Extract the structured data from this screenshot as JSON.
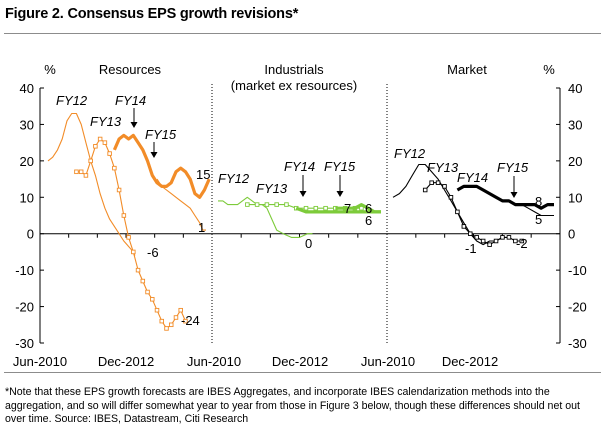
{
  "figure": {
    "title": "Figure 2. Consensus EPS growth revisions*",
    "footnote": "*Note that these EPS growth forecasts are IBES Aggregates, and incorporate IBES calendarization methods into the aggregation, and so will differ somewhat year to year from those in Figure 3 below, though these differences should net out over time. Source: IBES, Datastream, Citi Research"
  },
  "chart_data": {
    "type": "line",
    "y_unit_label": "%",
    "ylim": [
      -30,
      40
    ],
    "yticks": [
      -30,
      -20,
      -10,
      0,
      10,
      20,
      30,
      40
    ],
    "x_axis_ticks": [
      "Jun-2010",
      "Dec-2012",
      "Jun-2010",
      "Dec-2012",
      "Jun-2010",
      "Dec-2012"
    ],
    "colors": {
      "resources": "#F28C28",
      "industrials": "#7DCB3A",
      "market": "#000000"
    },
    "panels": [
      {
        "id": "resources",
        "title": "Resources",
        "subtitle": "",
        "xlim": [
          0,
          1
        ],
        "series": [
          {
            "name": "FY12",
            "style": "thin",
            "points": [
              [
                0.0,
                20
              ],
              [
                0.03,
                21
              ],
              [
                0.06,
                23
              ],
              [
                0.09,
                26
              ],
              [
                0.12,
                31
              ],
              [
                0.15,
                33
              ],
              [
                0.18,
                33
              ],
              [
                0.21,
                30
              ],
              [
                0.24,
                25
              ],
              [
                0.27,
                20
              ],
              [
                0.3,
                16
              ],
              [
                0.33,
                11
              ],
              [
                0.36,
                7
              ],
              [
                0.39,
                4
              ],
              [
                0.42,
                2
              ],
              [
                0.45,
                0
              ],
              [
                0.48,
                -2
              ],
              [
                0.5,
                -3
              ],
              [
                0.52,
                -4
              ],
              [
                0.54,
                -5
              ],
              [
                0.55,
                -6
              ]
            ]
          },
          {
            "name": "FY13",
            "style": "thin-square",
            "points": [
              [
                0.18,
                17
              ],
              [
                0.21,
                17
              ],
              [
                0.24,
                16
              ],
              [
                0.27,
                20
              ],
              [
                0.3,
                24
              ],
              [
                0.33,
                26
              ],
              [
                0.36,
                25
              ],
              [
                0.39,
                22
              ],
              [
                0.42,
                18
              ],
              [
                0.45,
                12
              ],
              [
                0.48,
                5
              ],
              [
                0.51,
                -1
              ],
              [
                0.54,
                -5
              ],
              [
                0.57,
                -10
              ],
              [
                0.6,
                -13
              ],
              [
                0.63,
                -16
              ],
              [
                0.66,
                -18
              ],
              [
                0.69,
                -21
              ],
              [
                0.72,
                -24
              ],
              [
                0.75,
                -26
              ],
              [
                0.78,
                -25
              ],
              [
                0.81,
                -23
              ],
              [
                0.84,
                -21
              ],
              [
                0.87,
                -24
              ]
            ]
          },
          {
            "name": "FY14",
            "style": "thick",
            "points": [
              [
                0.42,
                23
              ],
              [
                0.45,
                26
              ],
              [
                0.48,
                27
              ],
              [
                0.51,
                26
              ],
              [
                0.54,
                27
              ],
              [
                0.57,
                25
              ],
              [
                0.6,
                23
              ],
              [
                0.63,
                20
              ],
              [
                0.66,
                16
              ],
              [
                0.69,
                14
              ],
              [
                0.72,
                13
              ],
              [
                0.75,
                13
              ],
              [
                0.78,
                14
              ],
              [
                0.81,
                17
              ],
              [
                0.84,
                18
              ],
              [
                0.87,
                17
              ],
              [
                0.9,
                15
              ],
              [
                0.93,
                11
              ],
              [
                0.96,
                10
              ],
              [
                0.99,
                12
              ],
              [
                1.02,
                15
              ]
            ]
          },
          {
            "name": "FY15",
            "style": "thin",
            "points": [
              [
                0.69,
                15
              ],
              [
                0.72,
                13
              ],
              [
                0.75,
                12
              ],
              [
                0.78,
                11
              ],
              [
                0.81,
                10
              ],
              [
                0.84,
                9
              ],
              [
                0.87,
                8
              ],
              [
                0.9,
                7
              ],
              [
                0.93,
                5
              ],
              [
                0.96,
                3
              ],
              [
                0.98,
                1
              ],
              [
                1.0,
                1
              ]
            ]
          }
        ],
        "end_labels": [
          "15",
          "1",
          "-6",
          "-24"
        ],
        "series_labels": [
          "FY12",
          "FY13",
          "FY14",
          "FY15"
        ]
      },
      {
        "id": "industrials",
        "title": "Industrials",
        "subtitle": "(market ex resources)",
        "xlim": [
          0,
          1
        ],
        "series": [
          {
            "name": "FY12",
            "style": "thin",
            "points": [
              [
                0.0,
                9
              ],
              [
                0.03,
                9
              ],
              [
                0.06,
                8
              ],
              [
                0.09,
                8
              ],
              [
                0.12,
                8
              ],
              [
                0.15,
                9
              ],
              [
                0.18,
                10
              ],
              [
                0.21,
                9
              ],
              [
                0.24,
                8
              ],
              [
                0.27,
                8
              ],
              [
                0.3,
                7
              ],
              [
                0.33,
                4
              ],
              [
                0.36,
                1
              ],
              [
                0.4,
                0
              ],
              [
                0.45,
                -1
              ],
              [
                0.5,
                -1
              ],
              [
                0.55,
                0
              ],
              [
                0.58,
                0
              ]
            ]
          },
          {
            "name": "FY13",
            "style": "thin-square",
            "points": [
              [
                0.18,
                8
              ],
              [
                0.24,
                8
              ],
              [
                0.3,
                8
              ],
              [
                0.36,
                8
              ],
              [
                0.42,
                8
              ],
              [
                0.48,
                7
              ],
              [
                0.54,
                7
              ],
              [
                0.6,
                7
              ],
              [
                0.66,
                7
              ],
              [
                0.72,
                7
              ],
              [
                0.78,
                7
              ],
              [
                0.84,
                7
              ],
              [
                0.88,
                7
              ]
            ]
          },
          {
            "name": "FY14",
            "style": "thick",
            "points": [
              [
                0.48,
                7
              ],
              [
                0.54,
                6
              ],
              [
                0.6,
                6
              ],
              [
                0.66,
                6
              ],
              [
                0.72,
                6
              ],
              [
                0.78,
                6
              ],
              [
                0.84,
                6
              ],
              [
                0.9,
                6
              ],
              [
                0.96,
                6
              ],
              [
                1.0,
                6
              ]
            ]
          },
          {
            "name": "FY15",
            "style": "thick",
            "points": [
              [
                0.72,
                7
              ],
              [
                0.78,
                7
              ],
              [
                0.84,
                7
              ],
              [
                0.88,
                8
              ],
              [
                0.92,
                7
              ],
              [
                0.96,
                6
              ],
              [
                1.0,
                6
              ]
            ]
          }
        ],
        "end_labels": [
          "7",
          "6",
          "6",
          "0"
        ],
        "series_labels": [
          "FY12",
          "FY13",
          "FY14",
          "FY15"
        ]
      },
      {
        "id": "market",
        "title": "Market",
        "subtitle": "",
        "xlim": [
          0,
          1
        ],
        "series": [
          {
            "name": "FY12",
            "style": "thin",
            "points": [
              [
                0.0,
                10
              ],
              [
                0.04,
                11
              ],
              [
                0.08,
                13
              ],
              [
                0.12,
                16
              ],
              [
                0.16,
                19
              ],
              [
                0.2,
                19
              ],
              [
                0.24,
                17
              ],
              [
                0.28,
                15
              ],
              [
                0.32,
                12
              ],
              [
                0.36,
                9
              ],
              [
                0.4,
                6
              ],
              [
                0.44,
                3
              ],
              [
                0.48,
                0
              ],
              [
                0.52,
                -2
              ],
              [
                0.56,
                -3
              ],
              [
                0.6,
                -2
              ],
              [
                0.64,
                -2
              ],
              [
                0.68,
                -1
              ],
              [
                0.7,
                -1
              ]
            ]
          },
          {
            "name": "FY13",
            "style": "thin-square",
            "points": [
              [
                0.2,
                12
              ],
              [
                0.24,
                14
              ],
              [
                0.28,
                14
              ],
              [
                0.32,
                13
              ],
              [
                0.36,
                10
              ],
              [
                0.4,
                6
              ],
              [
                0.44,
                2
              ],
              [
                0.48,
                0
              ],
              [
                0.52,
                -1
              ],
              [
                0.56,
                -2
              ],
              [
                0.6,
                -3
              ],
              [
                0.64,
                -2
              ],
              [
                0.68,
                -1
              ],
              [
                0.72,
                -1
              ],
              [
                0.76,
                -2
              ],
              [
                0.8,
                -2
              ]
            ]
          },
          {
            "name": "FY14",
            "style": "thick",
            "points": [
              [
                0.4,
                12
              ],
              [
                0.44,
                13
              ],
              [
                0.48,
                13
              ],
              [
                0.52,
                13
              ],
              [
                0.56,
                12
              ],
              [
                0.6,
                11
              ],
              [
                0.64,
                10
              ],
              [
                0.68,
                9
              ],
              [
                0.72,
                9
              ],
              [
                0.76,
                8
              ],
              [
                0.8,
                8
              ],
              [
                0.84,
                8
              ],
              [
                0.88,
                8
              ],
              [
                0.92,
                7
              ],
              [
                0.96,
                8
              ],
              [
                1.0,
                8
              ]
            ]
          },
          {
            "name": "FY15",
            "style": "thin",
            "points": [
              [
                0.8,
                8
              ],
              [
                0.84,
                7
              ],
              [
                0.88,
                6
              ],
              [
                0.92,
                5
              ],
              [
                0.96,
                5
              ],
              [
                1.0,
                5
              ]
            ]
          }
        ],
        "end_labels": [
          "8",
          "5",
          "-2",
          "-1"
        ],
        "series_labels": [
          "FY12",
          "FY13",
          "FY14",
          "FY15"
        ]
      }
    ]
  }
}
